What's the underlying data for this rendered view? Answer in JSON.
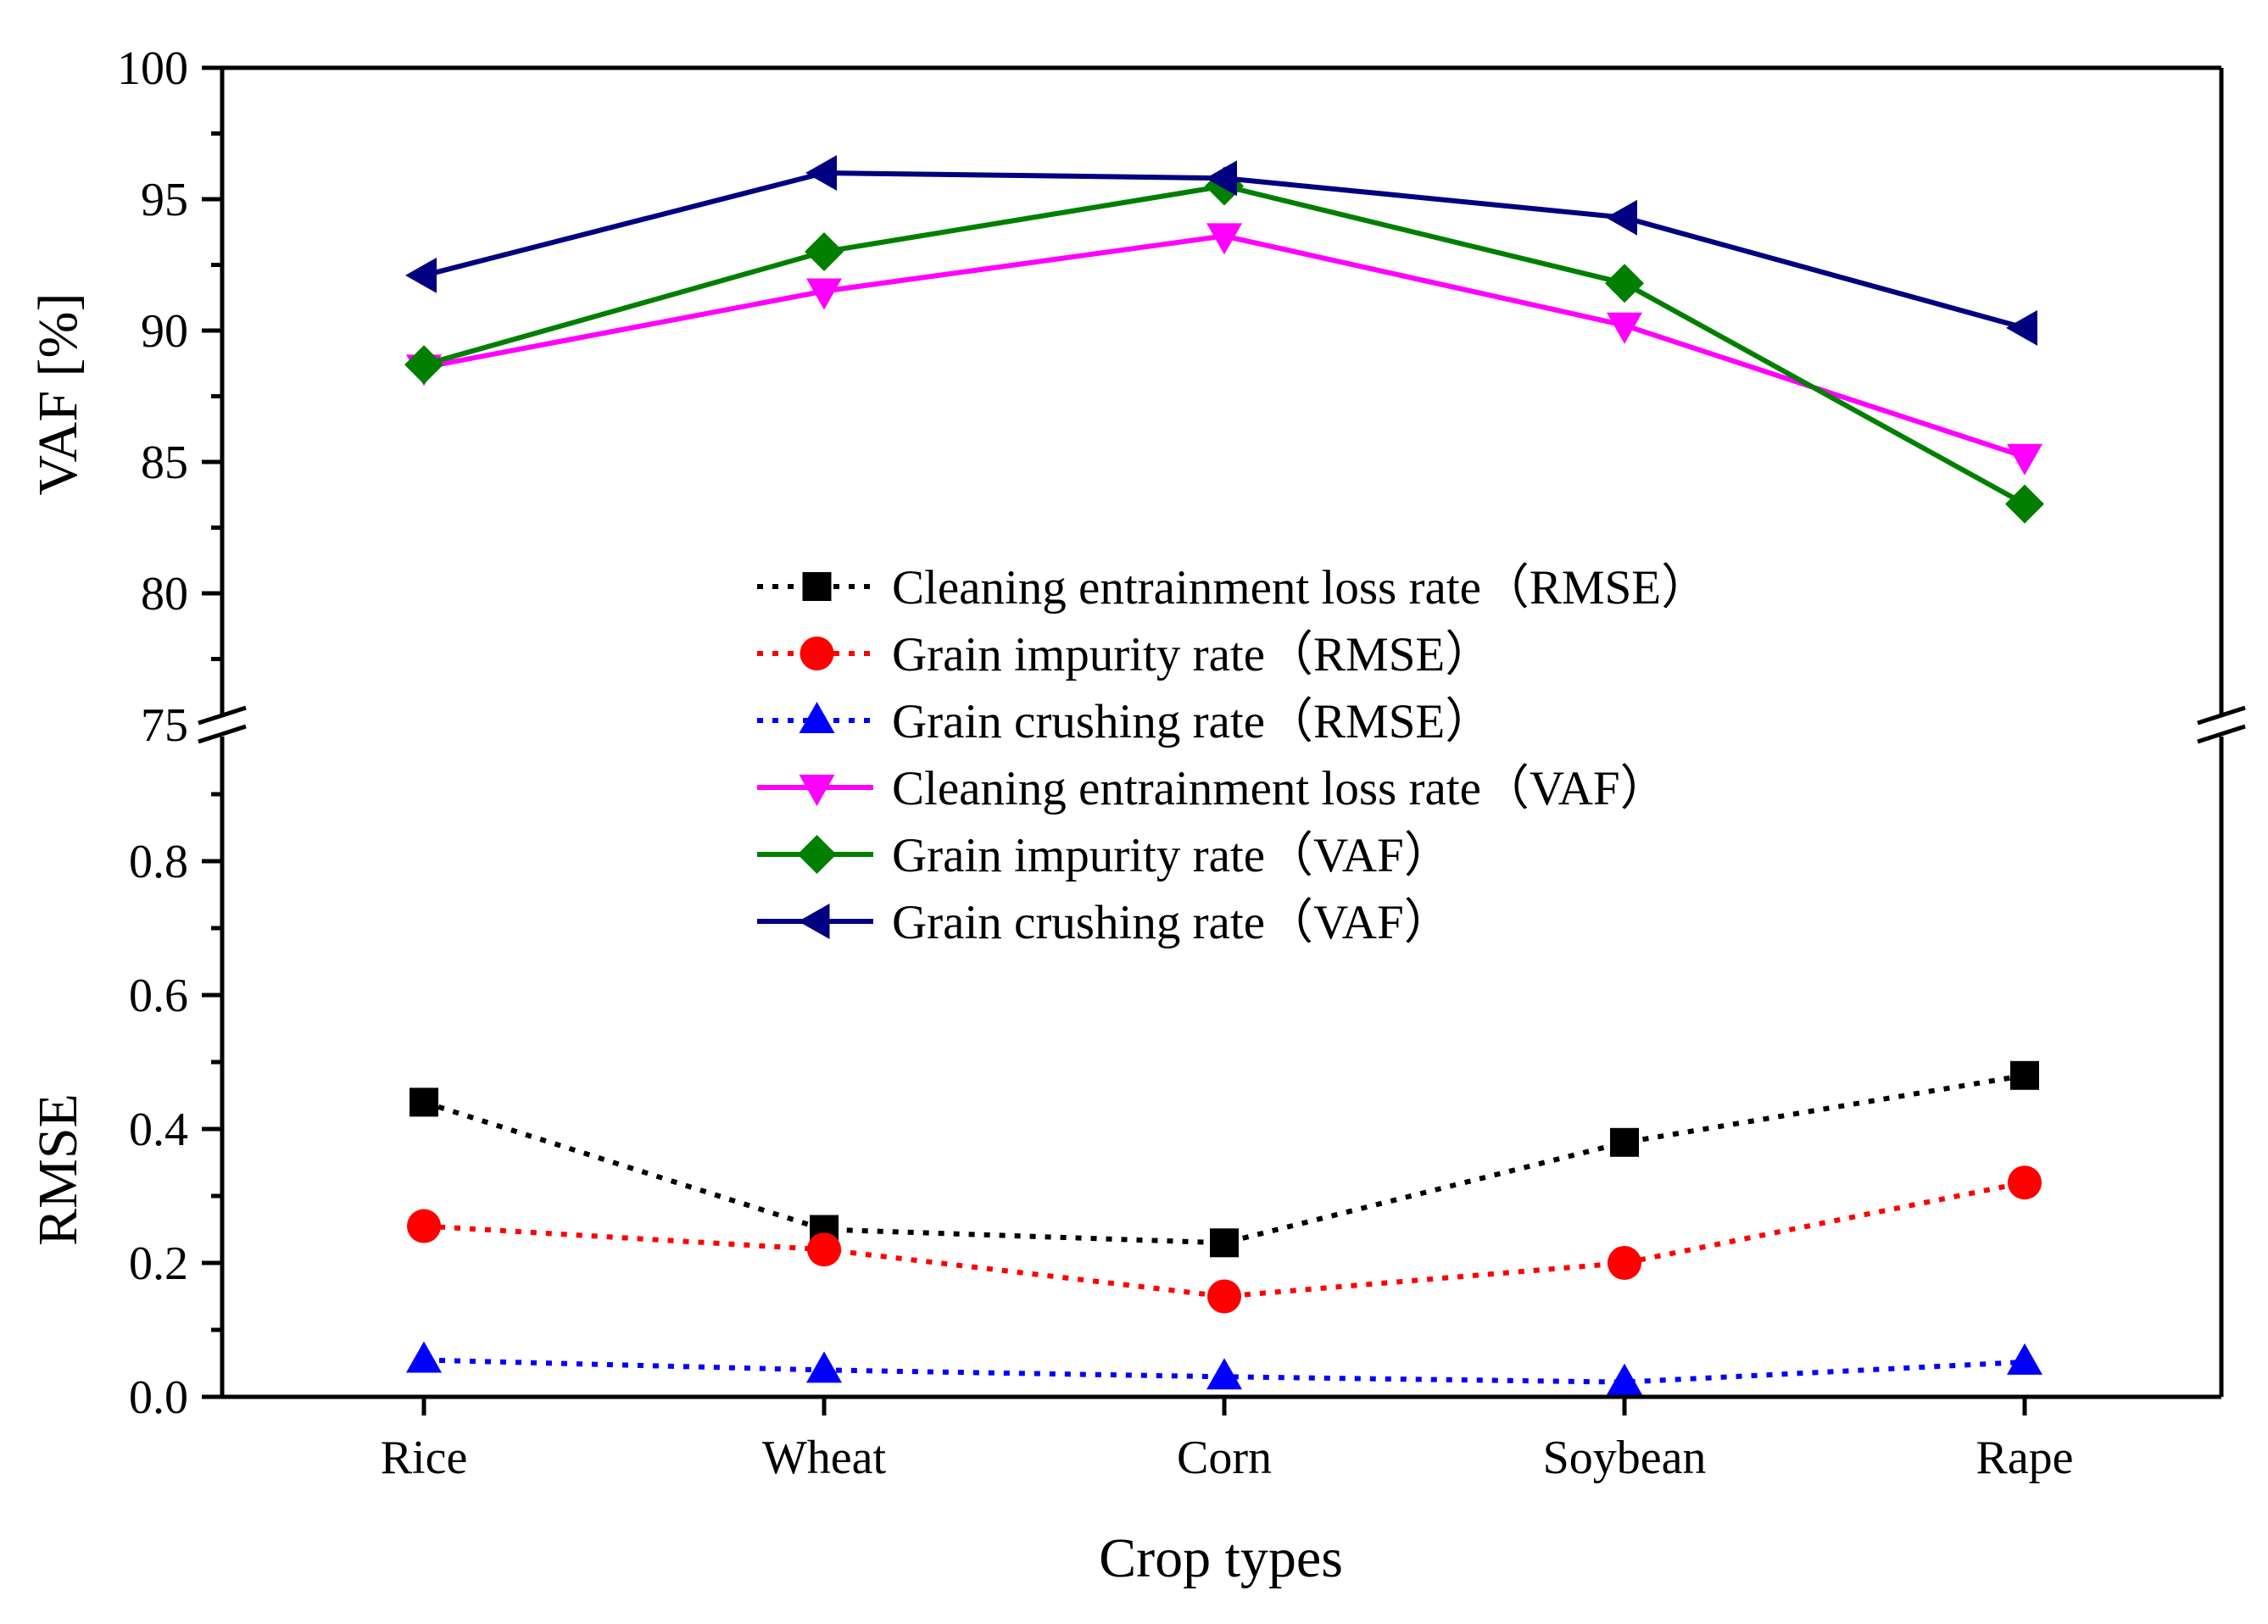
{
  "chart_data": {
    "type": "line",
    "categories": [
      "Rice",
      "Wheat",
      "Corn",
      "Soybean",
      "Rape"
    ],
    "xlabel": "Crop types",
    "panels": {
      "top": {
        "ylabel": "VAF [%]",
        "ylim": [
          75,
          100
        ],
        "ticks": [
          "75",
          "80",
          "85",
          "90",
          "95",
          "100"
        ]
      },
      "bottom": {
        "ylabel": "RMSE",
        "ylim": [
          0,
          0.95
        ],
        "ticks": [
          "0.0",
          "0.2",
          "0.4",
          "0.6",
          "0.8"
        ]
      }
    },
    "series": [
      {
        "name": "Cleaning entrainment loss rate（RMSE）",
        "panel": "bottom",
        "values": [
          0.44,
          0.25,
          0.23,
          0.38,
          0.48
        ],
        "color": "#000000",
        "line": "dotted",
        "marker": "square"
      },
      {
        "name": "Grain impurity rate（RMSE）",
        "panel": "bottom",
        "values": [
          0.255,
          0.22,
          0.15,
          0.2,
          0.32
        ],
        "color": "#ff0000",
        "line": "dotted",
        "marker": "circle"
      },
      {
        "name": "Grain crushing rate（RMSE）",
        "panel": "bottom",
        "values": [
          0.055,
          0.04,
          0.03,
          0.022,
          0.052
        ],
        "color": "#0000ff",
        "line": "dotted",
        "marker": "triangle-up"
      },
      {
        "name": "Cleaning entrainment loss rate（VAF）",
        "panel": "top",
        "values": [
          88.6,
          91.5,
          93.6,
          90.2,
          85.2
        ],
        "color": "#ff00ff",
        "line": "solid",
        "marker": "triangle-down"
      },
      {
        "name": "Grain impurity rate（VAF）",
        "panel": "top",
        "values": [
          88.7,
          93.0,
          95.5,
          91.8,
          83.4
        ],
        "color": "#007f00",
        "line": "solid",
        "marker": "diamond"
      },
      {
        "name": "Grain crushing rate（VAF）",
        "panel": "top",
        "values": [
          92.1,
          96.0,
          95.8,
          94.3,
          90.1
        ],
        "color": "#000080",
        "line": "solid",
        "marker": "triangle-left"
      }
    ],
    "legend_position": "center"
  }
}
